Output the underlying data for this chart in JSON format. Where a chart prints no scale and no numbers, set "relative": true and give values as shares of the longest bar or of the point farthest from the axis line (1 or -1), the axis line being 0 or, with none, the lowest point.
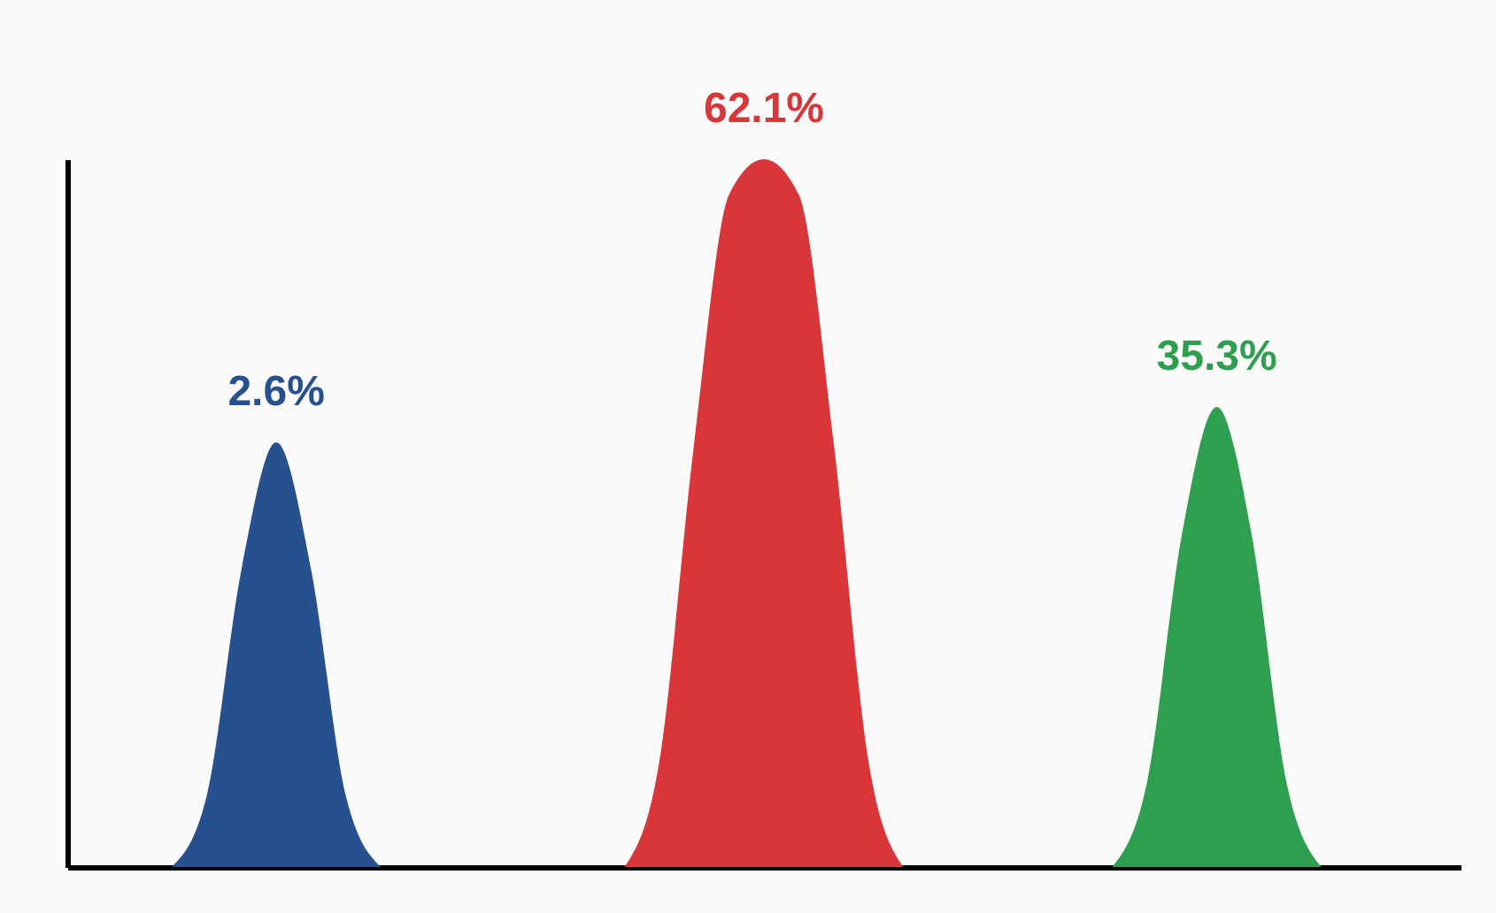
{
  "chart_data": {
    "type": "area",
    "relative": true,
    "categories": [
      null,
      null,
      null,
      null,
      null,
      null,
      null,
      null,
      null,
      null,
      null,
      null,
      null,
      null,
      null,
      null,
      null,
      null,
      null,
      null,
      null,
      null,
      null,
      null,
      null,
      null,
      null,
      null,
      null,
      null,
      null,
      null,
      null,
      null,
      null,
      null,
      null,
      null,
      null,
      null,
      null
    ],
    "series": [
      {
        "name": "2.6%",
        "color": "#27508f",
        "values": [
          null,
          null,
          null,
          0,
          0.1,
          0.42,
          0.6,
          0.42,
          0.1,
          0,
          null,
          null,
          null,
          null,
          null,
          null,
          null,
          null,
          null,
          null,
          null,
          null,
          null,
          null,
          null,
          null,
          null,
          null,
          null,
          null,
          null,
          null,
          null,
          null,
          null,
          null,
          null,
          null,
          null,
          null,
          null
        ]
      },
      {
        "name": "62.1%",
        "color": "#d9363a",
        "values": [
          null,
          null,
          null,
          null,
          null,
          null,
          null,
          null,
          null,
          null,
          null,
          null,
          null,
          null,
          null,
          null,
          0,
          0.15,
          0.6,
          0.95,
          1,
          0.95,
          0.6,
          0.15,
          0,
          null,
          null,
          null,
          null,
          null,
          null,
          null,
          null,
          null,
          null,
          null,
          null,
          null,
          null,
          null,
          null
        ]
      },
      {
        "name": "35.3%",
        "color": "#2e9e4f",
        "values": [
          null,
          null,
          null,
          null,
          null,
          null,
          null,
          null,
          null,
          null,
          null,
          null,
          null,
          null,
          null,
          null,
          null,
          null,
          null,
          null,
          null,
          null,
          null,
          null,
          null,
          null,
          null,
          null,
          null,
          null,
          0,
          0.12,
          0.47,
          0.65,
          0.47,
          0.12,
          0,
          null,
          null,
          null,
          null
        ]
      }
    ]
  }
}
